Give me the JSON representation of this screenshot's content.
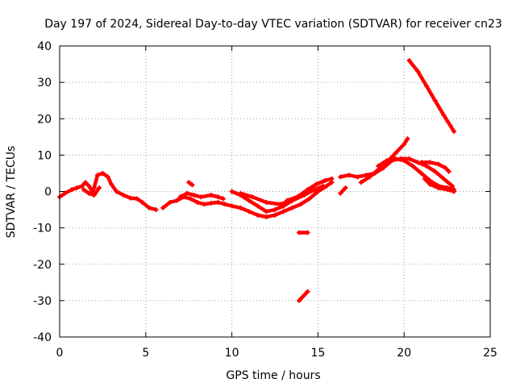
{
  "chart_data": {
    "type": "scatter",
    "title": "Day 197 of 2024, Sidereal Day-to-day VTEC variation (SDTVAR) for receiver cn23",
    "xlabel": "GPS time / hours",
    "ylabel": "SDTVAR / TECUs",
    "xlim": [
      0,
      25
    ],
    "ylim": [
      -40,
      40
    ],
    "xticks": [
      0,
      5,
      10,
      15,
      20,
      25
    ],
    "yticks": [
      -40,
      -30,
      -20,
      -10,
      0,
      10,
      20,
      30,
      40
    ],
    "grid": true,
    "color": "#ff0000",
    "series": [
      {
        "name": "trace-a",
        "points": [
          [
            0.0,
            -1.5
          ],
          [
            0.3,
            -0.5
          ],
          [
            0.7,
            0.5
          ],
          [
            1.0,
            1.0
          ],
          [
            1.3,
            1.5
          ],
          [
            1.5,
            2.5
          ],
          [
            1.7,
            1.5
          ],
          [
            1.9,
            0.0
          ],
          [
            2.0,
            1.0
          ],
          [
            2.2,
            4.5
          ],
          [
            2.5,
            5.0
          ],
          [
            2.8,
            4.0
          ],
          [
            3.0,
            2.0
          ],
          [
            3.3,
            0.0
          ],
          [
            3.7,
            -1.0
          ],
          [
            4.1,
            -1.8
          ],
          [
            4.5,
            -2.0
          ],
          [
            4.8,
            -3.0
          ],
          [
            5.2,
            -4.5
          ],
          [
            5.6,
            -5.0
          ]
        ]
      },
      {
        "name": "trace-b",
        "points": [
          [
            1.4,
            0.5
          ],
          [
            1.7,
            -0.5
          ],
          [
            2.0,
            -1.0
          ],
          [
            2.3,
            1.0
          ]
        ]
      },
      {
        "name": "trace-c",
        "points": [
          [
            6.0,
            -4.5
          ],
          [
            6.4,
            -3.0
          ],
          [
            6.8,
            -2.5
          ],
          [
            7.2,
            -1.5
          ],
          [
            7.6,
            -2.0
          ],
          [
            8.0,
            -3.0
          ],
          [
            8.4,
            -3.5
          ],
          [
            8.8,
            -3.2
          ],
          [
            9.2,
            -3.0
          ],
          [
            9.6,
            -3.5
          ],
          [
            10.0,
            -4.0
          ],
          [
            10.5,
            -4.5
          ],
          [
            11.0,
            -5.5
          ],
          [
            11.5,
            -6.5
          ],
          [
            12.0,
            -7.0
          ],
          [
            12.5,
            -6.5
          ],
          [
            13.0,
            -5.5
          ],
          [
            13.5,
            -4.5
          ],
          [
            14.0,
            -3.5
          ],
          [
            14.5,
            -2.0
          ],
          [
            15.0,
            0.0
          ],
          [
            15.5,
            1.5
          ],
          [
            15.8,
            2.5
          ]
        ]
      },
      {
        "name": "trace-d",
        "points": [
          [
            7.0,
            -1.5
          ],
          [
            7.4,
            -0.5
          ],
          [
            7.8,
            -1.0
          ],
          [
            8.2,
            -1.5
          ],
          [
            8.8,
            -1.0
          ],
          [
            9.2,
            -1.5
          ],
          [
            9.5,
            -2.0
          ]
        ]
      },
      {
        "name": "trace-e",
        "points": [
          [
            10.0,
            0.0
          ],
          [
            10.5,
            -1.0
          ],
          [
            11.0,
            -2.5
          ],
          [
            11.5,
            -4.0
          ],
          [
            12.0,
            -5.5
          ],
          [
            12.5,
            -5.0
          ],
          [
            13.0,
            -4.0
          ],
          [
            13.5,
            -2.5
          ],
          [
            14.0,
            -1.0
          ]
        ]
      },
      {
        "name": "trace-f",
        "points": [
          [
            10.5,
            -0.5
          ],
          [
            11.2,
            -1.5
          ],
          [
            12.0,
            -3.0
          ],
          [
            12.8,
            -3.5
          ],
          [
            13.5,
            -2.5
          ],
          [
            14.2,
            -1.0
          ],
          [
            14.8,
            0.5
          ],
          [
            15.3,
            1.5
          ]
        ]
      },
      {
        "name": "trace-g",
        "points": [
          [
            13.2,
            -2.5
          ],
          [
            13.8,
            -1.5
          ],
          [
            14.4,
            0.5
          ],
          [
            14.9,
            2.0
          ],
          [
            15.4,
            3.0
          ],
          [
            15.8,
            3.5
          ]
        ]
      },
      {
        "name": "trace-h",
        "points": [
          [
            7.5,
            2.5
          ],
          [
            7.7,
            1.8
          ]
        ]
      },
      {
        "name": "trace-i",
        "points": [
          [
            13.9,
            -11.3
          ],
          [
            14.4,
            -11.3
          ]
        ]
      },
      {
        "name": "trace-j",
        "points": [
          [
            13.9,
            -30.0
          ],
          [
            14.1,
            -29.0
          ],
          [
            14.4,
            -27.5
          ]
        ]
      },
      {
        "name": "trace-k",
        "points": [
          [
            16.3,
            -0.5
          ],
          [
            16.6,
            1.0
          ]
        ]
      },
      {
        "name": "trace-l",
        "points": [
          [
            16.3,
            4.0
          ],
          [
            16.8,
            4.5
          ],
          [
            17.3,
            4.0
          ],
          [
            17.8,
            4.5
          ],
          [
            18.3,
            5.0
          ],
          [
            18.8,
            6.5
          ],
          [
            19.3,
            8.5
          ],
          [
            19.8,
            9.0
          ],
          [
            20.3,
            9.0
          ],
          [
            20.8,
            8.0
          ],
          [
            21.3,
            7.0
          ],
          [
            21.8,
            5.5
          ],
          [
            22.3,
            3.5
          ],
          [
            22.8,
            1.5
          ]
        ]
      },
      {
        "name": "trace-m",
        "points": [
          [
            17.5,
            2.5
          ],
          [
            18.0,
            4.0
          ],
          [
            18.5,
            6.0
          ],
          [
            19.0,
            8.0
          ],
          [
            19.5,
            10.5
          ],
          [
            20.0,
            13.0
          ],
          [
            20.2,
            14.5
          ]
        ]
      },
      {
        "name": "trace-n",
        "points": [
          [
            18.5,
            7.0
          ],
          [
            19.0,
            8.5
          ],
          [
            19.5,
            9.0
          ],
          [
            20.0,
            8.5
          ],
          [
            20.5,
            7.0
          ],
          [
            21.0,
            5.0
          ],
          [
            21.5,
            3.0
          ],
          [
            22.0,
            1.5
          ],
          [
            22.5,
            1.0
          ],
          [
            22.9,
            0.5
          ]
        ]
      },
      {
        "name": "trace-o",
        "points": [
          [
            21.0,
            8.0
          ],
          [
            21.5,
            8.0
          ],
          [
            22.0,
            7.5
          ],
          [
            22.4,
            6.5
          ],
          [
            22.6,
            5.5
          ]
        ]
      },
      {
        "name": "trace-p",
        "points": [
          [
            21.2,
            3.5
          ],
          [
            21.5,
            2.0
          ],
          [
            22.0,
            1.0
          ],
          [
            22.5,
            0.5
          ],
          [
            22.9,
            0.0
          ]
        ]
      },
      {
        "name": "trace-q",
        "points": [
          [
            20.3,
            36.0
          ],
          [
            20.8,
            33.0
          ],
          [
            21.3,
            29.0
          ],
          [
            21.8,
            25.0
          ],
          [
            22.3,
            21.0
          ],
          [
            22.9,
            16.5
          ]
        ]
      }
    ]
  }
}
